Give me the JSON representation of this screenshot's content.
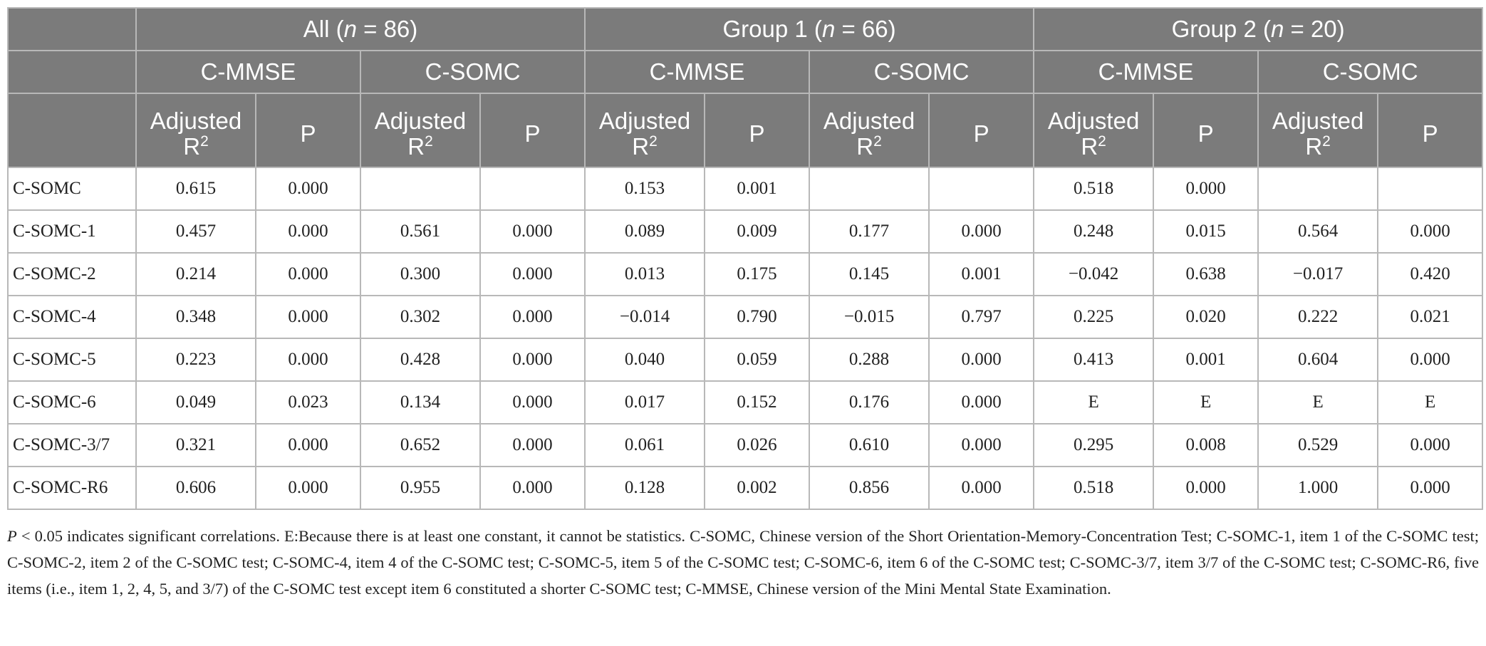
{
  "header": {
    "groups": [
      {
        "label": "All",
        "n_label": "n",
        "n_value": "= 86"
      },
      {
        "label": "Group 1",
        "n_label": "n",
        "n_value": "= 66"
      },
      {
        "label": "Group 2",
        "n_label": "n",
        "n_value": "= 20"
      }
    ],
    "measures": [
      "C-MMSE",
      "C-SOMC",
      "C-MMSE",
      "C-SOMC",
      "C-MMSE",
      "C-SOMC"
    ],
    "adjusted_label": "Adjusted",
    "r_label": "R",
    "r_sup": "2",
    "p_label": "P"
  },
  "rows": [
    {
      "label": "C-SOMC",
      "values": [
        "0.615",
        "0.000",
        "",
        "",
        "0.153",
        "0.001",
        "",
        "",
        "0.518",
        "0.000",
        "",
        ""
      ]
    },
    {
      "label": "C-SOMC-1",
      "values": [
        "0.457",
        "0.000",
        "0.561",
        "0.000",
        "0.089",
        "0.009",
        "0.177",
        "0.000",
        "0.248",
        "0.015",
        "0.564",
        "0.000"
      ]
    },
    {
      "label": "C-SOMC-2",
      "values": [
        "0.214",
        "0.000",
        "0.300",
        "0.000",
        "0.013",
        "0.175",
        "0.145",
        "0.001",
        "−0.042",
        "0.638",
        "−0.017",
        "0.420"
      ]
    },
    {
      "label": "C-SOMC-4",
      "values": [
        "0.348",
        "0.000",
        "0.302",
        "0.000",
        "−0.014",
        "0.790",
        "−0.015",
        "0.797",
        "0.225",
        "0.020",
        "0.222",
        "0.021"
      ]
    },
    {
      "label": "C-SOMC-5",
      "values": [
        "0.223",
        "0.000",
        "0.428",
        "0.000",
        "0.040",
        "0.059",
        "0.288",
        "0.000",
        "0.413",
        "0.001",
        "0.604",
        "0.000"
      ]
    },
    {
      "label": "C-SOMC-6",
      "values": [
        "0.049",
        "0.023",
        "0.134",
        "0.000",
        "0.017",
        "0.152",
        "0.176",
        "0.000",
        "E",
        "E",
        "E",
        "E"
      ]
    },
    {
      "label": "C-SOMC-3/7",
      "values": [
        "0.321",
        "0.000",
        "0.652",
        "0.000",
        "0.061",
        "0.026",
        "0.610",
        "0.000",
        "0.295",
        "0.008",
        "0.529",
        "0.000"
      ]
    },
    {
      "label": "C-SOMC-R6",
      "values": [
        "0.606",
        "0.000",
        "0.955",
        "0.000",
        "0.128",
        "0.002",
        "0.856",
        "0.000",
        "0.518",
        "0.000",
        "1.000",
        "0.000"
      ]
    }
  ],
  "footnote": {
    "p_symbol": "P",
    "text": " < 0.05 indicates significant correlations. E:Because there is at least one constant, it cannot be statistics. C-SOMC, Chinese version of the Short Orientation-Memory-Concentration Test; C-SOMC-1, item 1 of the C-SOMC test; C-SOMC-2, item 2 of the C-SOMC test; C-SOMC-4, item 4 of the C-SOMC test; C-SOMC-5, item 5 of the C-SOMC test; C-SOMC-6, item 6 of the C-SOMC test; C-SOMC-3/7, item 3/7 of the C-SOMC test; C-SOMC-R6, five items (i.e., item 1, 2, 4, 5, and 3/7) of the C-SOMC test except item 6 constituted a shorter C-SOMC test; C-MMSE, Chinese version of the Mini Mental State Examination."
  },
  "colors": {
    "header_bg": "#7b7b7b",
    "header_text": "#ffffff",
    "grid": "#b8b8b8",
    "body_text": "#222222"
  }
}
